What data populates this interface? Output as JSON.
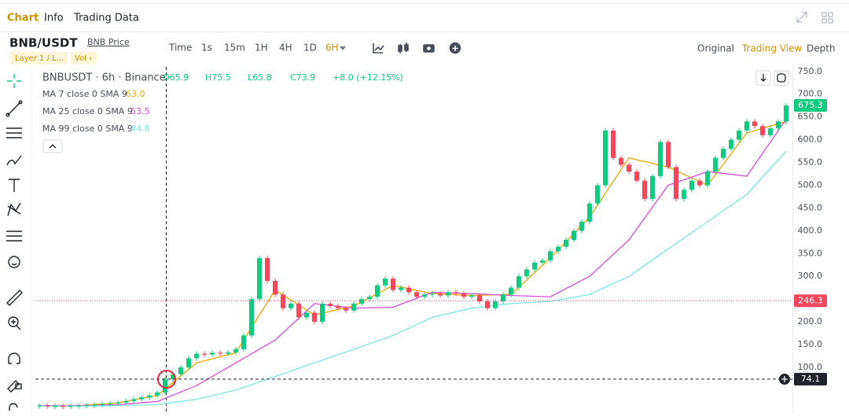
{
  "tabs": [
    "Chart",
    "Info",
    "Trading Data"
  ],
  "symbol": "BNB/USDT",
  "symbol_link": "BNB Price",
  "tags": [
    "Layer 1 / L...",
    "Vol ›"
  ],
  "intervals": [
    "Time",
    "1s",
    "15m",
    "1H",
    "4H",
    "1D",
    "6H"
  ],
  "views": [
    "Original",
    "Trading View",
    "Depth"
  ],
  "chart_data": {
    "type": "candlestick",
    "title": "BNBUSDT · 6h · Binance",
    "ohlc_text": [
      "O65.9",
      "H75.5",
      "L65.8",
      "C73.9",
      "+8.0 (+12.15%)"
    ],
    "up_color": "#0ecb81",
    "down_color": "#f6465d",
    "close": [
      16,
      15,
      15,
      14,
      15,
      16,
      17,
      18,
      20,
      21,
      23,
      26,
      30,
      34,
      38,
      45,
      74,
      85,
      100,
      120,
      130,
      128,
      132,
      130,
      133,
      140,
      170,
      250,
      340,
      290,
      260,
      230,
      240,
      210,
      220,
      200,
      240,
      235,
      230,
      225,
      240,
      250,
      255,
      280,
      295,
      270,
      275,
      265,
      255,
      260,
      262,
      258,
      265,
      262,
      255,
      258,
      245,
      230,
      245,
      260,
      275,
      300,
      315,
      330,
      335,
      355,
      365,
      380,
      400,
      420,
      460,
      500,
      620,
      560,
      545,
      530,
      510,
      470,
      520,
      595,
      540,
      470,
      490,
      510,
      500,
      530,
      560,
      580,
      600,
      620,
      640,
      630,
      610,
      625,
      640,
      675.3
    ],
    "ma_index": [
      0,
      5,
      10,
      15,
      20,
      25,
      30,
      35,
      40,
      45,
      50,
      55,
      60,
      65,
      70,
      75,
      80,
      85,
      90,
      95
    ],
    "series": [
      {
        "name": "MA 7 close 0 SMA 9",
        "color": "#e6a700",
        "legend_value": "63.0",
        "values": [
          16,
          16,
          22,
          38,
          110,
          132,
          270,
          215,
          235,
          280,
          262,
          258,
          260,
          340,
          430,
          560,
          540,
          500,
          615,
          640
        ]
      },
      {
        "name": "MA 25 close 0 SMA 9",
        "color": "#d64fd4",
        "legend_value": "53.5",
        "values": [
          16,
          16,
          18,
          25,
          60,
          110,
          160,
          240,
          230,
          232,
          265,
          262,
          258,
          255,
          300,
          380,
          500,
          530,
          520,
          645
        ]
      },
      {
        "name": "MA 99 close 0 SMA 9",
        "color": "#7ee5e5",
        "legend_value": "44.8",
        "values": [
          15,
          15,
          16,
          18,
          30,
          50,
          80,
          110,
          140,
          170,
          210,
          230,
          240,
          245,
          260,
          300,
          360,
          420,
          480,
          575
        ]
      }
    ],
    "ylim": [
      10,
      760
    ],
    "yticks": [
      {
        "value": 100,
        "label": "100.0"
      },
      {
        "value": 150,
        "label": "150.0"
      },
      {
        "value": 200,
        "label": "200.0"
      },
      {
        "value": 250,
        "label": "250.0"
      },
      {
        "value": 300,
        "label": "300.0"
      },
      {
        "value": 350,
        "label": "350.0"
      },
      {
        "value": 400,
        "label": "400.0"
      },
      {
        "value": 450,
        "label": "450.0"
      },
      {
        "value": 500,
        "label": "500.0"
      },
      {
        "value": 550,
        "label": "550.0"
      },
      {
        "value": 600,
        "label": "600.0"
      },
      {
        "value": 650,
        "label": "650.0"
      },
      {
        "value": 700,
        "label": "700.0"
      },
      {
        "value": 750,
        "label": "750.0"
      }
    ],
    "price_lines": [
      {
        "value": 675.3,
        "color": "#0ecb81",
        "style": "none"
      },
      {
        "value": 246.3,
        "color": "#f6465d",
        "style": "dotted"
      },
      {
        "value": 74.1,
        "color": "#1e2329",
        "style": "dashed"
      }
    ]
  }
}
